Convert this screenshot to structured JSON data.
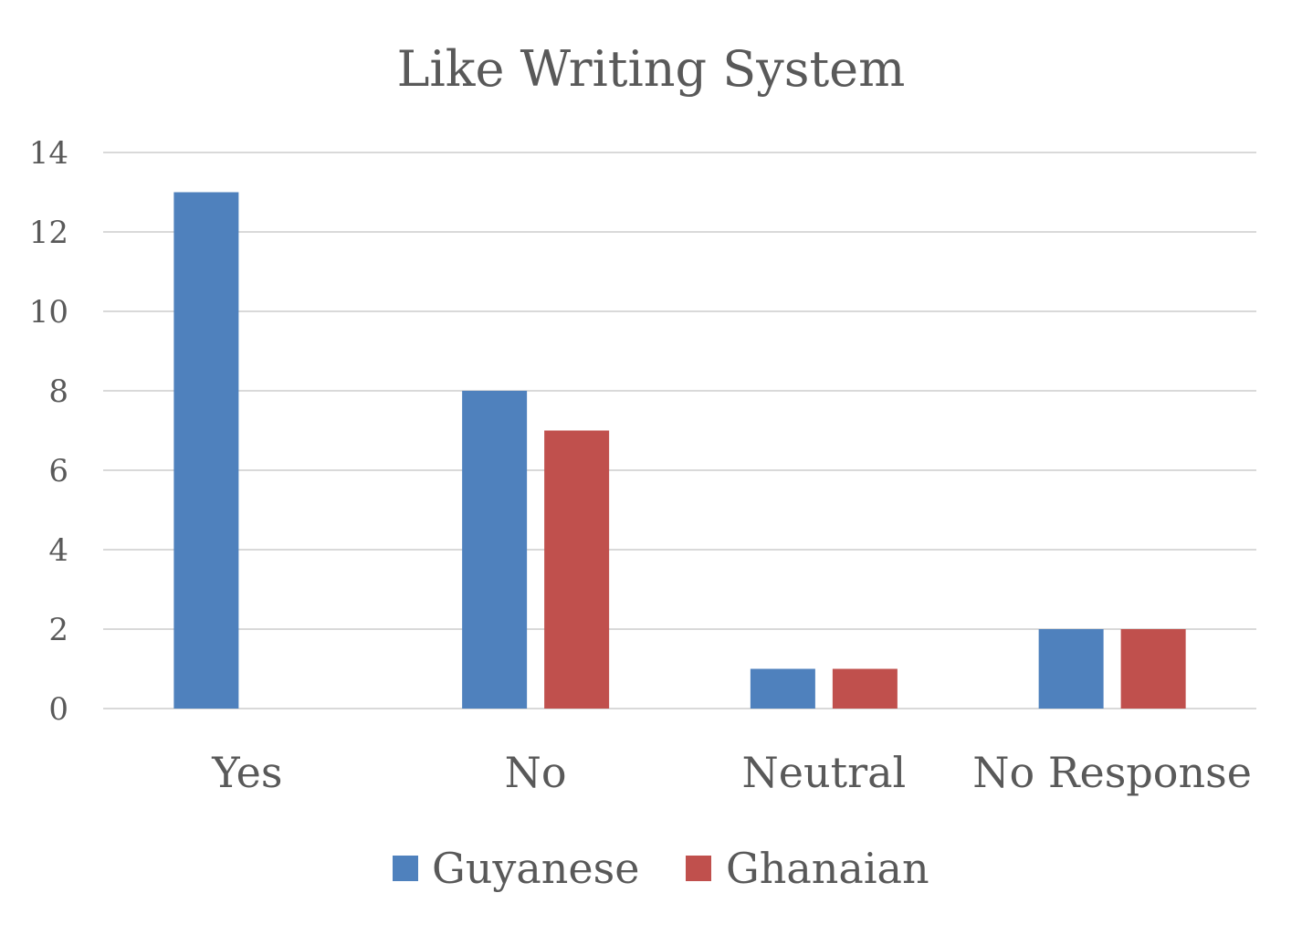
{
  "chart_data": {
    "type": "bar",
    "title": "Like Writing System",
    "xlabel": "",
    "ylabel": "",
    "categories": [
      "Yes",
      "No",
      "Neutral",
      "No Response"
    ],
    "series": [
      {
        "name": "Guyanese",
        "values": [
          13,
          8,
          1,
          2
        ],
        "color": "#4f81bd"
      },
      {
        "name": "Ghanaian",
        "values": [
          0,
          7,
          1,
          2
        ],
        "color": "#c0504d"
      }
    ],
    "ylim": [
      0,
      14
    ],
    "yticks": [
      0,
      2,
      4,
      6,
      8,
      10,
      12,
      14
    ],
    "grid": true,
    "legend_position": "bottom"
  }
}
